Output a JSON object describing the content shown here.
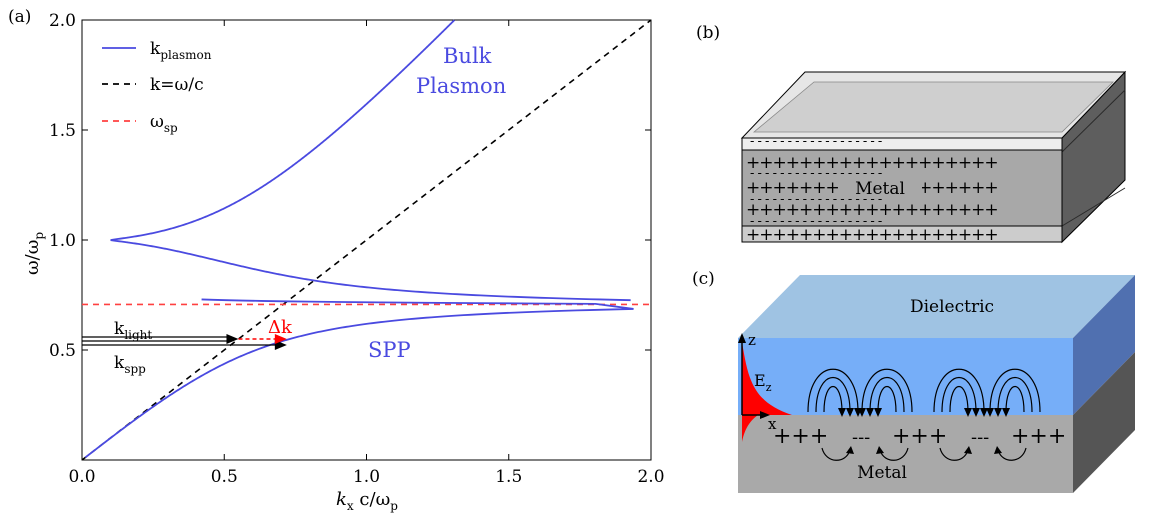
{
  "panels": {
    "a": "(a)",
    "b": "(b)",
    "c": "(c)"
  },
  "chart_data": {
    "type": "line",
    "xlabel": {
      "var": "k",
      "sub": "x",
      "rest": " c/ω",
      "rest_sub": "p"
    },
    "ylabel": {
      "text": "ω/ω",
      "sub": "p"
    },
    "xlim": [
      0,
      2.0
    ],
    "ylim": [
      0,
      2.0
    ],
    "xticks": [
      "0.0",
      "0.5",
      "1.0",
      "1.5",
      "2.0"
    ],
    "yticks": [
      "0.5",
      "1.0",
      "1.5",
      "2.0"
    ],
    "omega_sp": 0.707,
    "legend": {
      "placement": "top-left",
      "entries": [
        {
          "label": "k",
          "sub": "plasmon",
          "color": "#4a4ae0",
          "style": "solid"
        },
        {
          "label": "k=ω/c",
          "sub": "",
          "color": "#000000",
          "style": "dashed"
        },
        {
          "label": "ω",
          "sub": "sp",
          "color": "#ff4040",
          "style": "dashed"
        }
      ]
    },
    "annotations": {
      "bulk_line1": "Bulk",
      "bulk_line2": "Plasmon",
      "spp": "SPP",
      "klight": {
        "text": "k",
        "sub": "light"
      },
      "kspp": {
        "text": "k",
        "sub": "spp"
      },
      "delta_k": "Δk"
    },
    "arrow_values": {
      "y": 0.55,
      "k_light": 0.55,
      "k_spp": 0.72
    },
    "colors": {
      "plasmon": "#4a4ae0",
      "light": "#000000",
      "sp": "#ff4040"
    }
  },
  "diagram_b": {
    "label": "Metal",
    "charge_rows": [
      "+++++++++++++++++++",
      "- - - - - - - - - - - - - - - - - -",
      "+++++++++++++++++++",
      "- - - - - - - - - - - - - - - - - -",
      "+++++++++++++++++++",
      "- - - - - - - - - - - - - - - - - -",
      "+++++++++++++++++++"
    ]
  },
  "diagram_c": {
    "dielectric": "Dielectric",
    "metal": "Metal",
    "axis_z": "z",
    "axis_x": "x",
    "ez": {
      "text": "E",
      "sub": "z"
    },
    "charges": [
      "+++",
      "---",
      "+++",
      "---",
      "+++"
    ],
    "colors": {
      "dielectric_top": "#9fc3e3",
      "dielectric_front": "#76aef8",
      "dielectric_side": "#5070b0",
      "metal_front": "#a9a9a9",
      "metal_side": "#555555",
      "field": "#ff0000"
    }
  }
}
